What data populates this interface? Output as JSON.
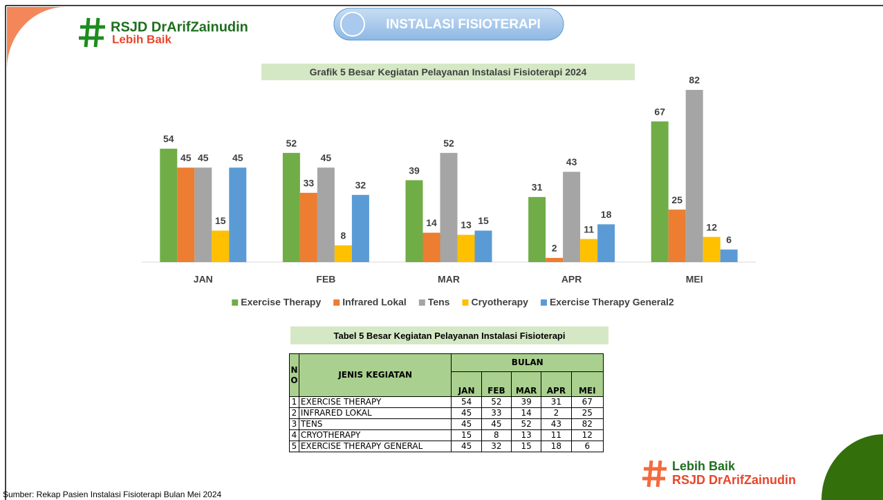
{
  "header": {
    "brand": "RSJD DrArifZainudin",
    "slogan": "Lebih Baik",
    "unit": "INSTALASI FISIOTERAPI"
  },
  "chart_data": {
    "type": "bar",
    "title": "Grafik 5 Besar Kegiatan Pelayanan Instalasi Fisioterapi 2024",
    "categories": [
      "JAN",
      "FEB",
      "MAR",
      "APR",
      "MEI"
    ],
    "series": [
      {
        "name": "Exercise Therapy",
        "color": "#70ad47",
        "values": [
          54,
          52,
          39,
          31,
          67
        ]
      },
      {
        "name": "Infrared Lokal",
        "color": "#ed7d31",
        "values": [
          45,
          33,
          14,
          2,
          25
        ]
      },
      {
        "name": "Tens",
        "color": "#a5a5a5",
        "values": [
          45,
          45,
          52,
          43,
          82
        ]
      },
      {
        "name": "Cryotherapy",
        "color": "#ffc000",
        "values": [
          15,
          8,
          13,
          11,
          12
        ]
      },
      {
        "name": "Exercise Therapy General2",
        "color": "#5b9bd5",
        "values": [
          45,
          32,
          15,
          18,
          6
        ]
      }
    ],
    "legend": "bottom"
  },
  "table": {
    "title": "Tabel 5 Besar Kegiatan Pelayanan Instalasi Fisioterapi",
    "head": {
      "no": "NO",
      "item": "JENIS KEGIATAN",
      "group": "BULAN",
      "months": [
        "JAN",
        "FEB",
        "MAR",
        "APR",
        "MEI"
      ]
    },
    "rows": [
      [
        "1",
        "EXERCISE THERAPY",
        54,
        52,
        39,
        31,
        67
      ],
      [
        "2",
        "INFRARED LOKAL",
        45,
        33,
        14,
        2,
        25
      ],
      [
        "3",
        "TENS",
        45,
        45,
        52,
        43,
        82
      ],
      [
        "4",
        "CRYOTHERAPY",
        15,
        8,
        13,
        11,
        12
      ],
      [
        "5",
        "EXERCISE THERAPY GENERAL",
        45,
        32,
        15,
        18,
        6
      ]
    ]
  },
  "footer": {
    "source": "Sumber: Rekap Pasien Instalasi Fisioterapi Bulan Mei 2024",
    "slogan": "Lebih Baik",
    "brand": "RSJD DrArifZainudin"
  }
}
